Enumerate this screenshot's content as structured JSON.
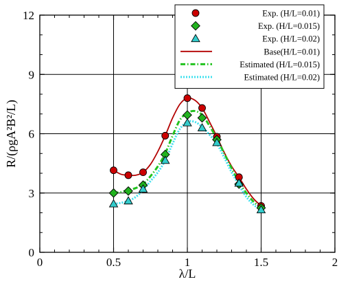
{
  "chart_data": {
    "type": "scatter",
    "xlabel": "λ/L",
    "ylabel": "R/(ρgA²B²/L)",
    "xlim": [
      0,
      2
    ],
    "ylim": [
      0,
      12
    ],
    "xticks": [
      0,
      0.5,
      1,
      1.5,
      2
    ],
    "yticks": [
      0,
      3,
      6,
      9,
      12
    ],
    "xtick_labels": [
      "0",
      "0.5",
      "1",
      "1.5",
      "2"
    ],
    "ytick_labels": [
      "0",
      "3",
      "6",
      "9",
      "12"
    ],
    "grid": true,
    "legend_position": "top-right",
    "series": [
      {
        "name": "Exp. (H/L=0.01)",
        "kind": "markers",
        "marker": "circle",
        "color": "#cc0000",
        "x": [
          0.5,
          0.6,
          0.7,
          0.85,
          1.0,
          1.1,
          1.2,
          1.35,
          1.5
        ],
        "y": [
          4.15,
          3.9,
          4.05,
          5.9,
          7.8,
          7.3,
          5.85,
          3.8,
          2.35
        ]
      },
      {
        "name": "Exp. (H/L=0.015)",
        "kind": "markers",
        "marker": "diamond",
        "color": "#22b21f",
        "x": [
          0.5,
          0.6,
          0.7,
          0.85,
          1.0,
          1.1,
          1.2,
          1.35,
          1.5
        ],
        "y": [
          3.0,
          3.1,
          3.4,
          4.95,
          6.95,
          6.8,
          5.7,
          3.45,
          2.25
        ]
      },
      {
        "name": "Exp. (H/L=0.02)",
        "kind": "markers",
        "marker": "triangle",
        "color": "#33cccc",
        "x": [
          0.5,
          0.6,
          0.7,
          0.85,
          1.0,
          1.1,
          1.2,
          1.35,
          1.5
        ],
        "y": [
          2.45,
          2.6,
          3.2,
          4.65,
          6.55,
          6.3,
          5.55,
          3.5,
          2.15
        ]
      },
      {
        "name": "Base(H/L=0.01)",
        "kind": "line",
        "style": "solid",
        "color": "#b30000",
        "x": [
          0.5,
          0.55,
          0.6,
          0.65,
          0.7,
          0.75,
          0.8,
          0.85,
          0.9,
          0.95,
          1.0,
          1.05,
          1.1,
          1.15,
          1.2,
          1.25,
          1.3,
          1.35,
          1.4,
          1.45,
          1.5
        ],
        "y": [
          4.15,
          3.95,
          3.9,
          3.9,
          4.05,
          4.45,
          5.1,
          5.9,
          6.8,
          7.5,
          7.8,
          7.7,
          7.3,
          6.6,
          5.85,
          5.05,
          4.35,
          3.8,
          3.2,
          2.7,
          2.35
        ]
      },
      {
        "name": "Estimated (H/L=0.015)",
        "kind": "line",
        "style": "dashdot",
        "color": "#22c21f",
        "x": [
          0.5,
          0.55,
          0.6,
          0.65,
          0.7,
          0.75,
          0.8,
          0.85,
          0.9,
          0.95,
          1.0,
          1.05,
          1.1,
          1.15,
          1.2,
          1.25,
          1.3,
          1.35,
          1.4,
          1.45,
          1.5
        ],
        "y": [
          3.0,
          3.05,
          3.15,
          3.25,
          3.45,
          3.85,
          4.35,
          5.0,
          5.9,
          6.7,
          7.05,
          7.15,
          6.95,
          6.4,
          5.75,
          5.0,
          4.25,
          3.55,
          3.0,
          2.55,
          2.25
        ]
      },
      {
        "name": "Estimated (H/L=0.02)",
        "kind": "line",
        "style": "dotted",
        "color": "#3fe0ee",
        "x": [
          0.5,
          0.55,
          0.6,
          0.65,
          0.7,
          0.75,
          0.8,
          0.85,
          0.9,
          0.95,
          1.0,
          1.05,
          1.1,
          1.15,
          1.2,
          1.25,
          1.3,
          1.35,
          1.4,
          1.45,
          1.5
        ],
        "y": [
          2.45,
          2.5,
          2.6,
          2.8,
          3.15,
          3.6,
          4.05,
          4.65,
          5.5,
          6.25,
          6.6,
          6.6,
          6.35,
          5.95,
          5.5,
          4.8,
          4.05,
          3.4,
          2.8,
          2.4,
          2.15
        ]
      }
    ]
  }
}
